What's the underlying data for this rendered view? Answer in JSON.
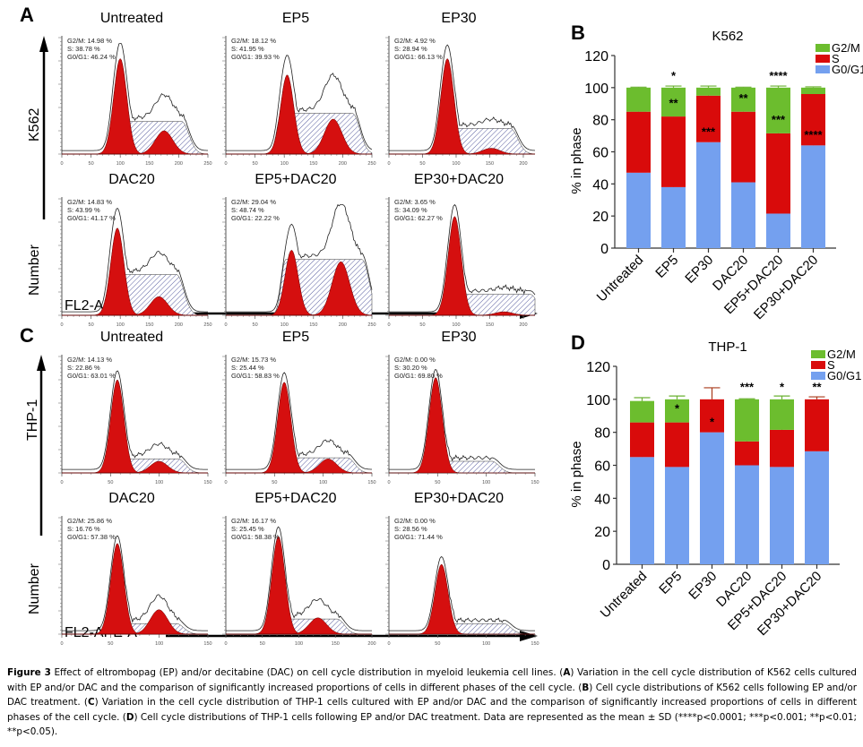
{
  "panels": {
    "A": {
      "letter": "A",
      "cell_line_label": "K562",
      "y_label": "Number",
      "x_label": "FL2-APE-A",
      "histograms": [
        {
          "title": "Untreated",
          "g2m": "G2/M: 14.98 %",
          "s": "S: 38.78 %",
          "g0g1": "G0/G1: 46.24 %",
          "xticks": [
            "0",
            "50",
            "100",
            "150",
            "200",
            "250"
          ],
          "peak": 0.4,
          "g1h": 0.82,
          "sh": 0.28,
          "g2h": 0.2,
          "sw": 0.2
        },
        {
          "title": "EP5",
          "g2m": "G2/M: 18.12 %",
          "s": "S: 41.95 %",
          "g0g1": "G0/G1: 39.93 %",
          "xticks": [
            "0",
            "50",
            "100",
            "150",
            "200",
            "250"
          ],
          "peak": 0.42,
          "g1h": 0.68,
          "sh": 0.35,
          "g2h": 0.3,
          "sw": 0.22
        },
        {
          "title": "EP30",
          "g2m": "G2/M: 4.92 %",
          "s": "S: 28.94 %",
          "g0g1": "G0/G1: 66.13 %",
          "xticks": [
            "0",
            "50",
            "100",
            "150",
            "200"
          ],
          "peak": 0.4,
          "g1h": 0.82,
          "sh": 0.22,
          "g2h": 0.05,
          "sw": 0.22
        },
        {
          "title": "DAC20",
          "g2m": "G2/M: 14.83 %",
          "s": "S: 43.99 %",
          "g0g1": "G0/G1: 41.17 %",
          "xticks": [
            "0",
            "50",
            "100",
            "150",
            "200",
            "250"
          ],
          "peak": 0.38,
          "g1h": 0.75,
          "sh": 0.35,
          "g2h": 0.16,
          "sw": 0.2
        },
        {
          "title": "EP5+DAC20",
          "g2m": "G2/M: 29.04 %",
          "s": "S: 48.74 %",
          "g0g1": "G0/G1: 22.22 %",
          "xticks": [
            "0",
            "50",
            "100",
            "150",
            "200",
            "250"
          ],
          "peak": 0.45,
          "g1h": 0.56,
          "sh": 0.48,
          "g2h": 0.46,
          "sw": 0.24
        },
        {
          "title": "EP30+DAC20",
          "g2m": "G2/M: 3.65 %",
          "s": "S: 34.09 %",
          "g0g1": "G0/G1: 62.27 %",
          "xticks": [
            "0",
            "50",
            "100",
            "150",
            "200"
          ],
          "peak": 0.45,
          "g1h": 0.85,
          "sh": 0.18,
          "g2h": 0.03,
          "sw": 0.3
        }
      ]
    },
    "C": {
      "letter": "C",
      "cell_line_label": "THP-1",
      "y_label": "Number",
      "x_label": "FL2-APE-A",
      "histograms": [
        {
          "title": "Untreated",
          "g2m": "G2/M: 14.13 %",
          "s": "S: 22.86 %",
          "g0g1": "G0/G1: 63.01 %",
          "xticks": [
            "0",
            "50",
            "100",
            "150"
          ],
          "peak": 0.38,
          "g1h": 0.8,
          "sh": 0.12,
          "g2h": 0.1,
          "sw": 0.22
        },
        {
          "title": "EP5",
          "g2m": "G2/M: 15.73 %",
          "s": "S: 25.44 %",
          "g0g1": "G0/G1: 58.83 %",
          "xticks": [
            "0",
            "50",
            "100",
            "150"
          ],
          "peak": 0.4,
          "g1h": 0.78,
          "sh": 0.13,
          "g2h": 0.12,
          "sw": 0.22
        },
        {
          "title": "EP30",
          "g2m": "G2/M: 0.00 %",
          "s": "S: 30.20 %",
          "g0g1": "G0/G1: 69.80 %",
          "xticks": [
            "0",
            "50",
            "100",
            "150"
          ],
          "peak": 0.32,
          "g1h": 0.82,
          "sh": 0.1,
          "g2h": 0.0,
          "sw": 0.24
        },
        {
          "title": "DAC20",
          "g2m": "G2/M: 25.86 %",
          "s": "S: 16.76 %",
          "g0g1": "G0/G1: 57.38 %",
          "xticks": [
            "0",
            "50",
            "100",
            "150"
          ],
          "peak": 0.38,
          "g1h": 0.78,
          "sh": 0.09,
          "g2h": 0.21,
          "sw": 0.2
        },
        {
          "title": "EP5+DAC20",
          "g2m": "G2/M: 16.17 %",
          "s": "S: 25.45 %",
          "g0g1": "G0/G1: 58.38 %",
          "xticks": [
            "0",
            "50",
            "100",
            "150",
            "200"
          ],
          "peak": 0.36,
          "g1h": 0.84,
          "sh": 0.13,
          "g2h": 0.14,
          "sw": 0.22
        },
        {
          "title": "EP30+DAC20",
          "g2m": "G2/M: 0.00 %",
          "s": "S: 28.56 %",
          "g0g1": "G0/G1: 71.44 %",
          "xticks": [
            "0",
            "50",
            "100",
            "150"
          ],
          "peak": 0.36,
          "g1h": 0.6,
          "sh": 0.09,
          "g2h": 0.0,
          "sw": 0.26
        }
      ]
    },
    "B": {
      "letter": "B"
    },
    "D": {
      "letter": "D"
    }
  },
  "colors": {
    "g2m": "#6cbd2e",
    "s": "#d90b0b",
    "g0g1": "#74a0ef",
    "hist_red": "#d50f0f"
  },
  "chart_data": [
    {
      "type": "bar",
      "stacked": true,
      "title": "K562",
      "ylabel": "% in phase",
      "xlabel": "",
      "ylim": [
        0,
        120
      ],
      "yticks": [
        "0",
        "20",
        "40",
        "60",
        "80",
        "100",
        "120"
      ],
      "categories": [
        "Untreated",
        "EP5",
        "EP30",
        "DAC20",
        "EP5+DAC20",
        "EP30+DAC20"
      ],
      "legend": [
        "G2/M",
        "S",
        "G0/G1"
      ],
      "legend_position": "top-right",
      "series": [
        {
          "name": "G0/G1",
          "values": [
            47,
            38,
            66,
            41,
            21.5,
            64
          ],
          "errors": [
            0.3,
            1.5,
            3,
            1,
            0.6,
            1
          ]
        },
        {
          "name": "S",
          "values": [
            38,
            44,
            29,
            44,
            50,
            32
          ],
          "errors": [
            0.4,
            1.5,
            3,
            1,
            1.5,
            1.5
          ]
        },
        {
          "name": "G2/M",
          "values": [
            15,
            18,
            5,
            15,
            28.5,
            4
          ],
          "errors": [
            0.3,
            1,
            1,
            0.3,
            1,
            0.5
          ]
        }
      ],
      "annotations": [
        {
          "category": "EP5",
          "position": "top",
          "text": "*"
        },
        {
          "category": "EP5",
          "position": "G2/M",
          "text": "**"
        },
        {
          "category": "EP30",
          "position": "S",
          "text": "***"
        },
        {
          "category": "DAC20",
          "position": "G2/M",
          "text": "**"
        },
        {
          "category": "EP5+DAC20",
          "position": "top",
          "text": "****"
        },
        {
          "category": "EP5+DAC20",
          "position": "G2/M",
          "text": "***"
        },
        {
          "category": "EP30+DAC20",
          "position": "S",
          "text": "****"
        }
      ]
    },
    {
      "type": "bar",
      "stacked": true,
      "title": "THP-1",
      "ylabel": "% in phase",
      "xlabel": "",
      "ylim": [
        0,
        120
      ],
      "yticks": [
        "0",
        "20",
        "40",
        "60",
        "80",
        "100",
        "120"
      ],
      "categories": [
        "Untreated",
        "EP5",
        "EP30",
        "DAC20",
        "EP5+DAC20",
        "EP30+DAC20"
      ],
      "legend": [
        "G2/M",
        "S",
        "G0/G1"
      ],
      "legend_position": "top-right",
      "series": [
        {
          "name": "G0/G1",
          "values": [
            65,
            59,
            80,
            60,
            59,
            68.5
          ],
          "errors": [
            1.5,
            0.3,
            7,
            1.5,
            0.3,
            1.5
          ]
        },
        {
          "name": "S",
          "values": [
            21,
            27,
            20,
            14.5,
            22.5,
            31.5
          ],
          "errors": [
            2,
            1.5,
            7,
            2,
            2,
            1.5
          ]
        },
        {
          "name": "G2/M",
          "values": [
            13,
            14,
            0,
            25.5,
            18.5,
            0
          ],
          "errors": [
            2,
            2,
            0,
            0.3,
            2,
            0
          ]
        }
      ],
      "annotations": [
        {
          "category": "EP5",
          "position": "G2/M",
          "text": "*"
        },
        {
          "category": "EP30",
          "position": "S",
          "text": "*"
        },
        {
          "category": "DAC20",
          "position": "top",
          "text": "***"
        },
        {
          "category": "EP5+DAC20",
          "position": "top",
          "text": "*"
        },
        {
          "category": "EP30+DAC20",
          "position": "top",
          "text": "**"
        }
      ]
    }
  ],
  "caption": {
    "figure_label": "Figure 3",
    "intro": " Effect of  eltrombopag (EP) and/or decitabine (DAC) on cell cycle distribution in myeloid leukemia cell lines. (",
    "A": "A",
    "a_text": ") Variation in the cell cycle distribution of K562 cells cultured with EP and/or DAC and the comparison of significantly increased proportions of cells in different phases of the cell cycle. (",
    "B": "B",
    "b_text": ") Cell cycle distributions of K562 cells following EP and/or DAC treatment. (",
    "C": "C",
    "c_text": ") Variation in the cell cycle distribution of THP-1 cells cultured with EP and/or DAC and the comparison of significantly increased proportions of cells in different phases of the cell cycle. (",
    "D": "D",
    "d_text": ") Cell cycle distributions of THP-1 cells following EP and/or DAC treatment. Data are represented as the mean ± SD (****p<0.0001; ***p<0.001; **p<0.01; **p<0.05)."
  }
}
